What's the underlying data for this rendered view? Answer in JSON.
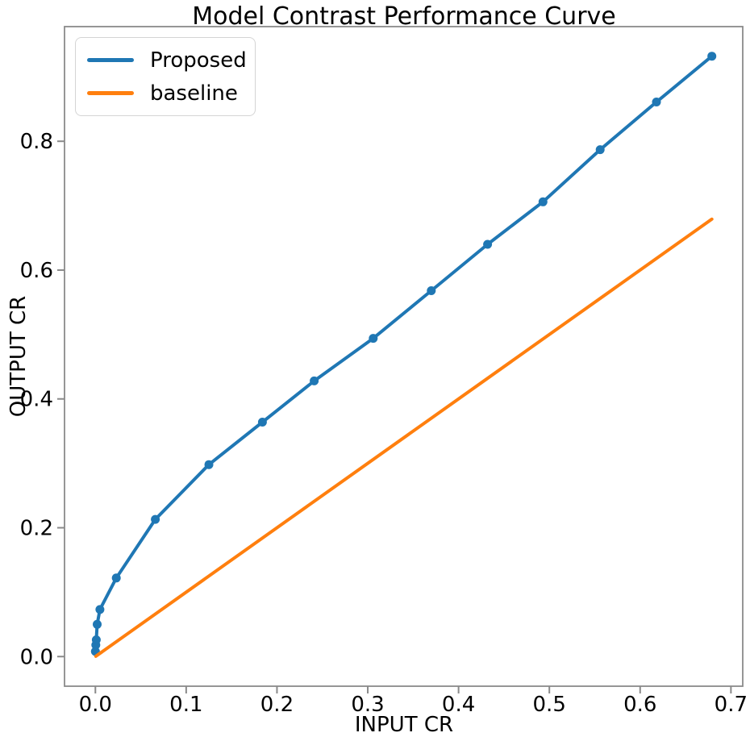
{
  "title": "Model Contrast Performance Curve",
  "colors": {
    "proposed": "#1f77b4",
    "baseline": "#ff7f0e",
    "spine": "#8a8a8a",
    "tick": "#8a8a8a",
    "text": "#000000",
    "background": "#ffffff",
    "legend_border": "#d4d4d4"
  },
  "legend": {
    "position": "upper left",
    "items": [
      {
        "label": "Proposed",
        "color": "#1f77b4"
      },
      {
        "label": "baseline",
        "color": "#ff7f0e"
      }
    ]
  },
  "chart_data": {
    "type": "line",
    "title": "Model Contrast Performance Curve",
    "xlabel": "INPUT CR",
    "ylabel": "OUTPUT CR",
    "xlim": [
      -0.034,
      0.713
    ],
    "ylim": [
      -0.046,
      0.978
    ],
    "xticks": [
      0.0,
      0.1,
      0.2,
      0.3,
      0.4,
      0.5,
      0.6,
      0.7
    ],
    "xtick_labels": [
      "0.0",
      "0.1",
      "0.2",
      "0.3",
      "0.4",
      "0.5",
      "0.6",
      "0.7"
    ],
    "yticks": [
      0.0,
      0.2,
      0.4,
      0.6,
      0.8
    ],
    "ytick_labels": [
      "0.0",
      "0.2",
      "0.4",
      "0.6",
      "0.8"
    ],
    "grid": false,
    "legend_position": "upper left",
    "series": [
      {
        "name": "Proposed",
        "color": "#1f77b4",
        "marker": "circle",
        "line_width": 4,
        "marker_radius": 5.5,
        "x": [
          0.0,
          0.0005,
          0.001,
          0.002,
          0.005,
          0.023,
          0.066,
          0.125,
          0.184,
          0.241,
          0.306,
          0.37,
          0.432,
          0.493,
          0.556,
          0.618,
          0.679
        ],
        "y": [
          0.008,
          0.018,
          0.026,
          0.05,
          0.073,
          0.122,
          0.213,
          0.298,
          0.364,
          0.428,
          0.494,
          0.568,
          0.64,
          0.706,
          0.787,
          0.861,
          0.932
        ]
      },
      {
        "name": "baseline",
        "color": "#ff7f0e",
        "marker": "none",
        "line_width": 4,
        "x": [
          0.0005,
          0.679
        ],
        "y": [
          0.0005,
          0.679
        ]
      }
    ]
  }
}
